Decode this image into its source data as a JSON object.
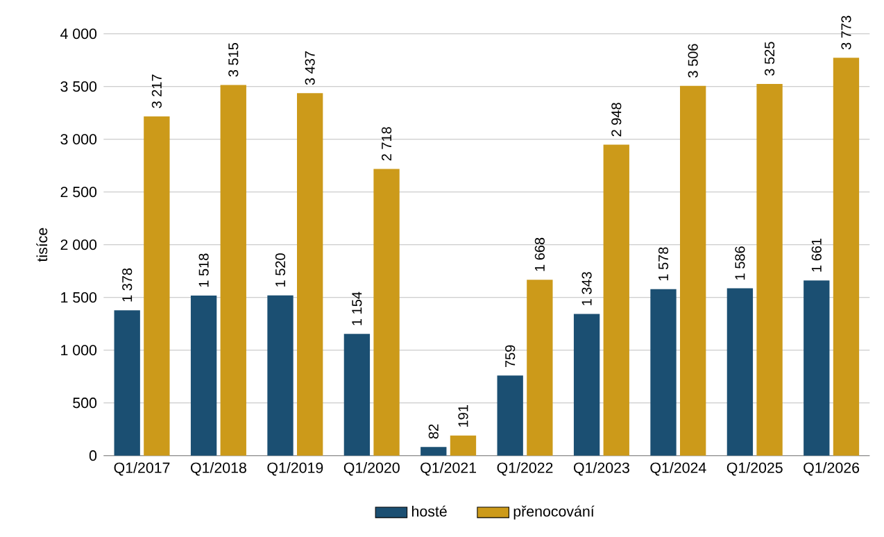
{
  "chart_data": {
    "type": "bar",
    "ylabel": "tisíce",
    "categories": [
      "Q1/2017",
      "Q1/2018",
      "Q1/2019",
      "Q1/2020",
      "Q1/2021",
      "Q1/2022",
      "Q1/2023",
      "Q1/2024",
      "Q1/2025",
      "Q1/2026"
    ],
    "series": [
      {
        "name": "hosté",
        "color": "#1b4f72",
        "values": [
          1378,
          1518,
          1520,
          1154,
          82,
          759,
          1343,
          1578,
          1586,
          1661
        ],
        "value_labels": [
          "1 378",
          "1 518",
          "1 520",
          "1 154",
          "82",
          "759",
          "1 343",
          "1 578",
          "1 586",
          "1 661"
        ]
      },
      {
        "name": "přenocování",
        "color": "#cc9a1a",
        "values": [
          3217,
          3515,
          3437,
          2718,
          191,
          1668,
          2948,
          3506,
          3525,
          3773
        ],
        "value_labels": [
          "3 217",
          "3 515",
          "3 437",
          "2 718",
          "191",
          "1 668",
          "2 948",
          "3 506",
          "3 525",
          "3 773"
        ]
      }
    ],
    "ylim": [
      0,
      4000
    ],
    "yticks": [
      0,
      500,
      {
        "value": 1000,
        "label": "1 000"
      },
      {
        "value": 1500,
        "label": "1 500"
      },
      {
        "value": 2000,
        "label": "2 000"
      },
      {
        "value": 2500,
        "label": "2 500"
      },
      {
        "value": 3000,
        "label": "3 000"
      },
      {
        "value": 3500,
        "label": "3 500"
      },
      {
        "value": 4000,
        "label": "4 000"
      }
    ],
    "grid": "y",
    "legend": "bottom"
  }
}
